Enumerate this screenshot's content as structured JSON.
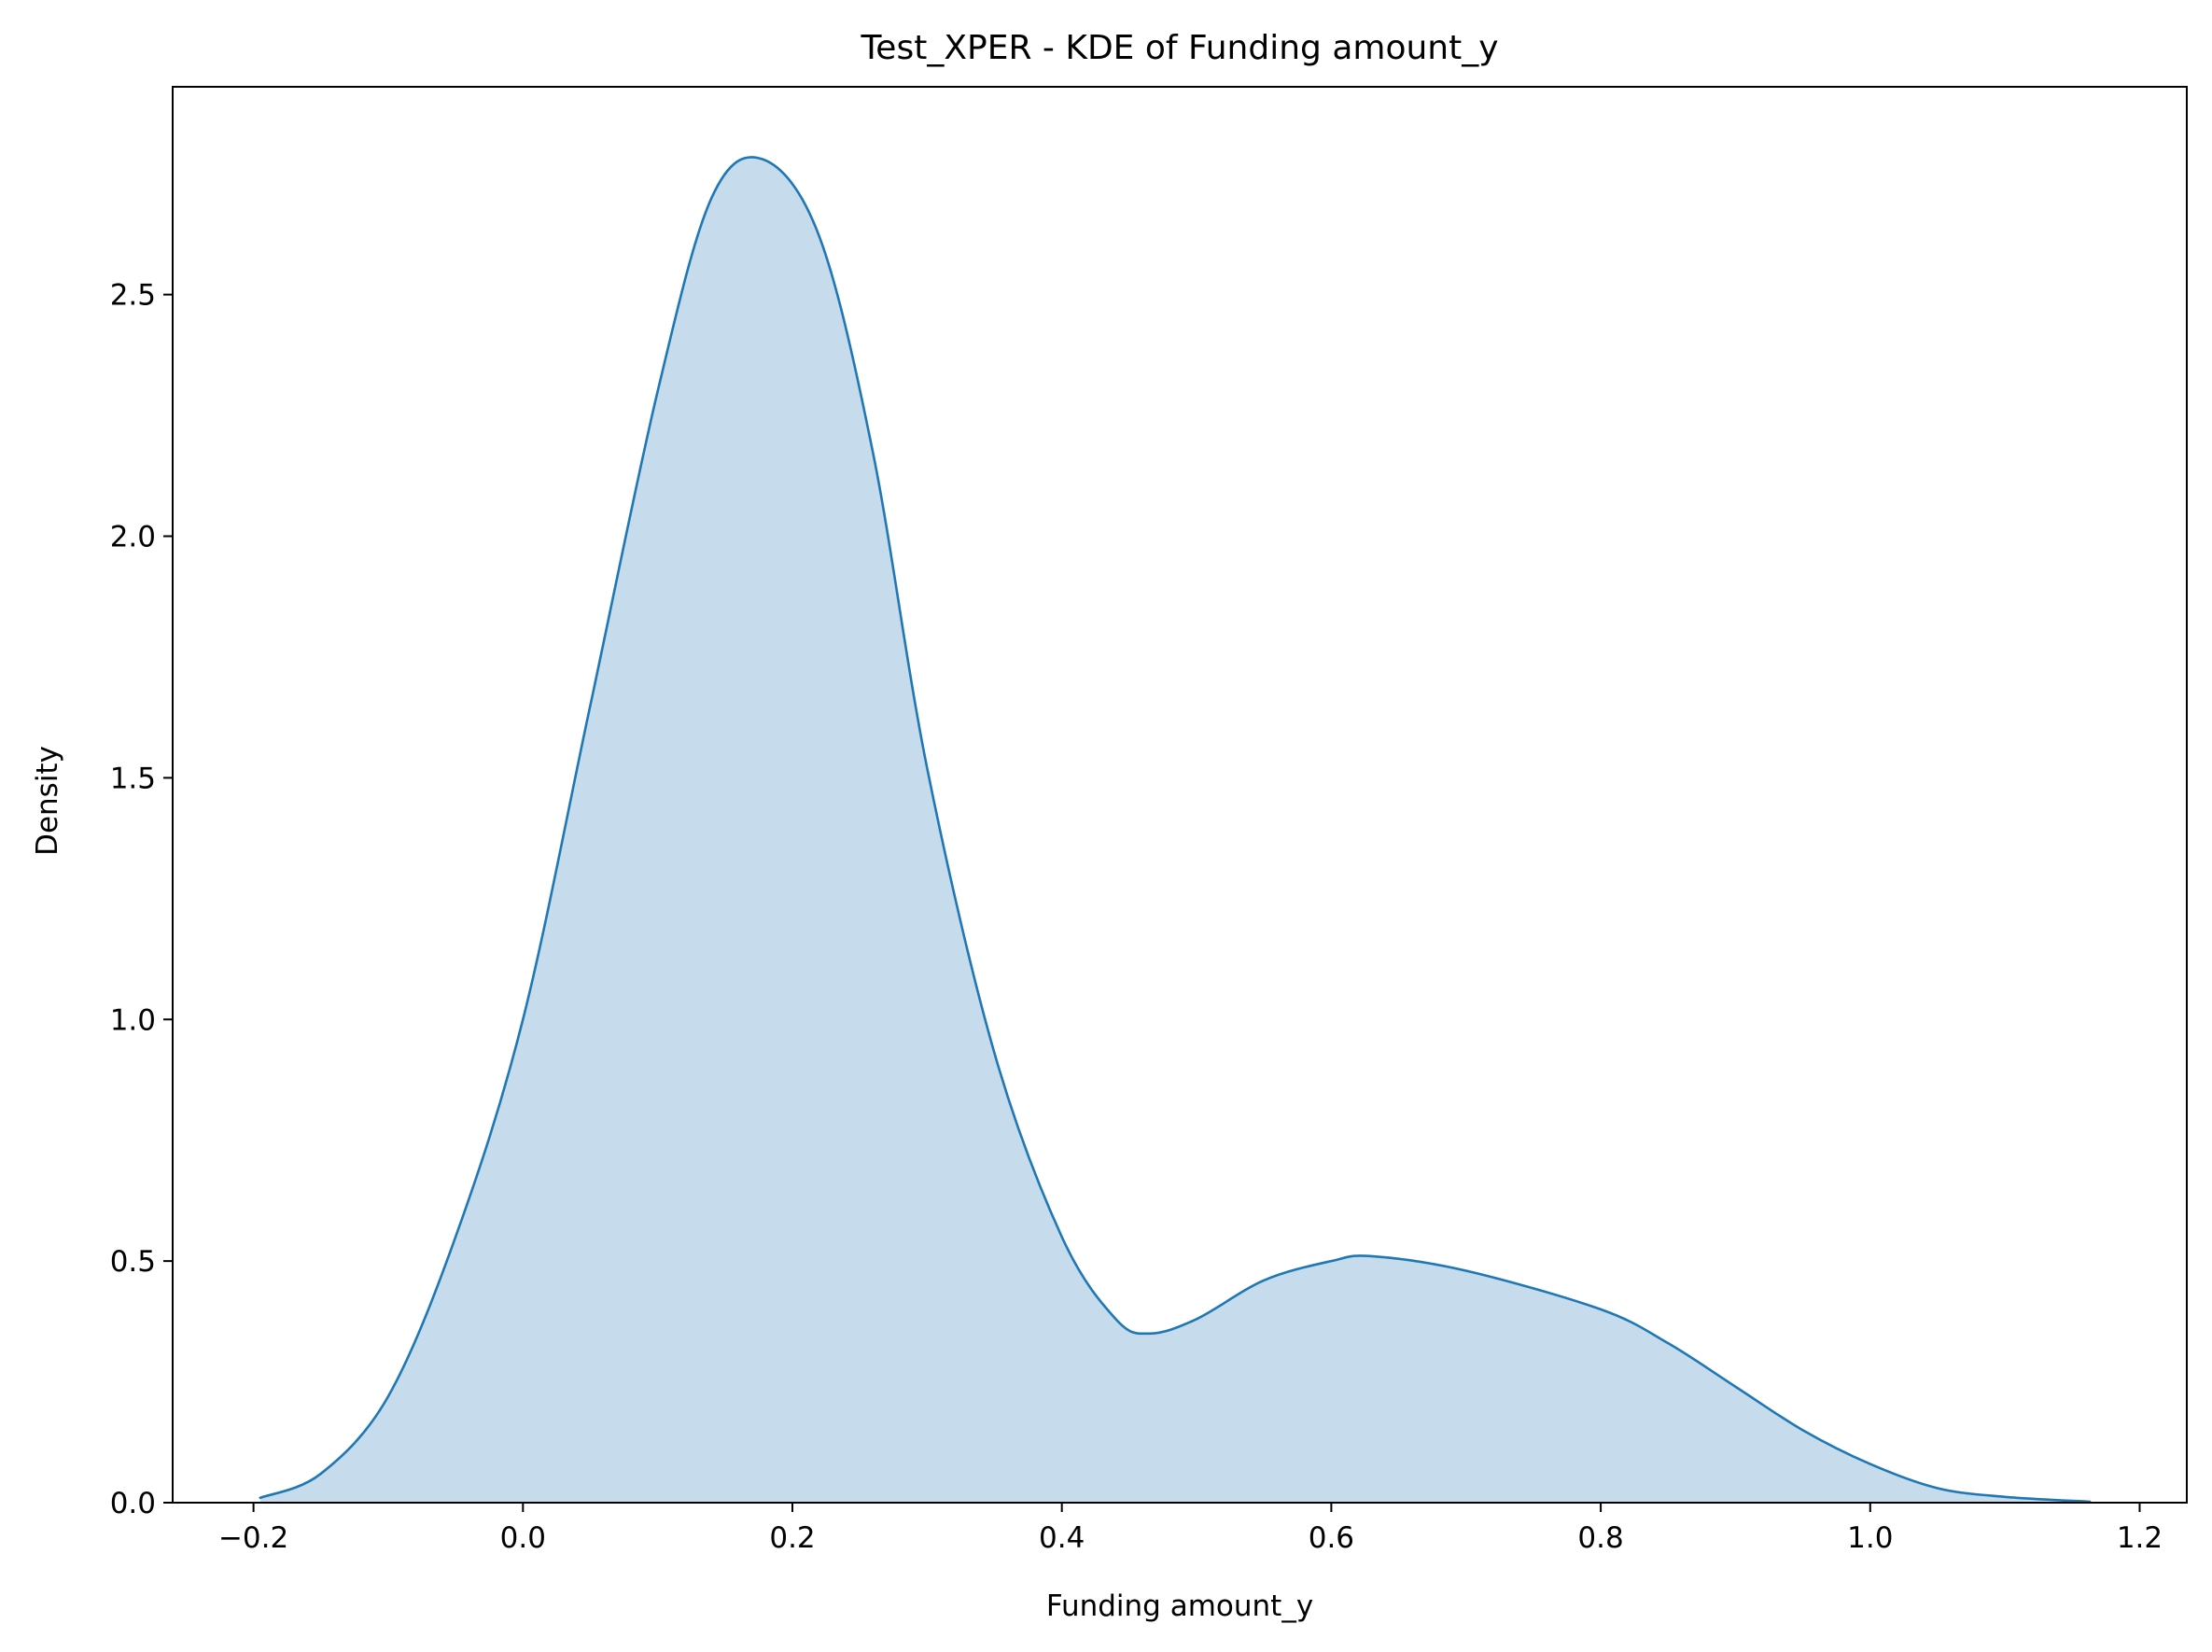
{
  "chart_data": {
    "type": "area",
    "title": "Test_XPER - KDE of Funding amount_y",
    "xlabel": "Funding amount_y",
    "ylabel": "Density",
    "xlim": [
      -0.26,
      1.235
    ],
    "ylim": [
      0,
      2.93
    ],
    "xticks": [
      -0.2,
      0.0,
      0.2,
      0.4,
      0.6,
      0.8,
      1.0,
      1.2
    ],
    "xtick_labels": [
      "−0.2",
      "0.0",
      "0.2",
      "0.4",
      "0.6",
      "0.8",
      "1.0",
      "1.2"
    ],
    "yticks": [
      0.0,
      0.5,
      1.0,
      1.5,
      2.0,
      2.5
    ],
    "ytick_labels": [
      "0.0",
      "0.5",
      "1.0",
      "1.5",
      "2.0",
      "2.5"
    ],
    "grid": false,
    "colors": {
      "line": "#1f77b4",
      "fill": "#c6dcec"
    },
    "series": [
      {
        "x": [
          -0.195,
          -0.15,
          -0.1,
          -0.05,
          0.0,
          0.05,
          0.1,
          0.14,
          0.178,
          0.22,
          0.26,
          0.3,
          0.35,
          0.4,
          0.44,
          0.465,
          0.5,
          0.55,
          0.6,
          0.63,
          0.7,
          0.8,
          0.85,
          0.9,
          0.95,
          1.0,
          1.05,
          1.1,
          1.163
        ],
        "y": [
          0.01,
          0.06,
          0.22,
          0.55,
          1.0,
          1.65,
          2.3,
          2.7,
          2.78,
          2.62,
          2.17,
          1.52,
          0.93,
          0.55,
          0.38,
          0.35,
          0.38,
          0.46,
          0.5,
          0.51,
          0.48,
          0.4,
          0.33,
          0.24,
          0.15,
          0.08,
          0.03,
          0.012,
          0.002
        ]
      }
    ]
  }
}
